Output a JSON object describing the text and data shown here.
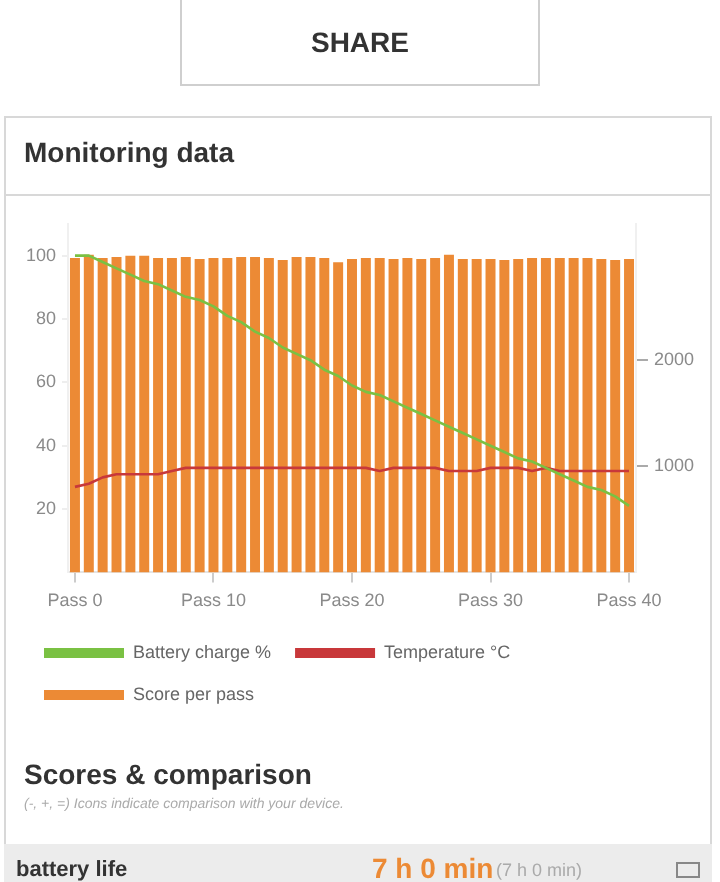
{
  "chart_data": {
    "type": "bar",
    "title": "Monitoring data",
    "categories": [
      "Pass 0",
      null,
      null,
      null,
      null,
      null,
      null,
      null,
      null,
      null,
      "Pass 10",
      null,
      null,
      null,
      null,
      null,
      null,
      null,
      null,
      null,
      "Pass 20",
      null,
      null,
      null,
      null,
      null,
      null,
      null,
      null,
      null,
      "Pass 30",
      null,
      null,
      null,
      null,
      null,
      null,
      null,
      null,
      null,
      "Pass 40"
    ],
    "ylim": [
      0,
      110
    ],
    "yticks": [
      20,
      40,
      60,
      80,
      100
    ],
    "y2lim": [
      0,
      3280
    ],
    "y2ticks": [
      1000,
      2000
    ],
    "series": [
      {
        "name": "Battery charge %",
        "type": "line",
        "color": "#7ac143",
        "values": [
          100,
          100,
          98,
          96,
          94,
          92,
          91,
          89,
          87,
          86,
          84,
          81,
          79,
          76,
          74,
          71,
          69,
          67,
          64,
          62,
          59,
          57,
          56,
          54,
          52,
          50,
          48,
          46,
          44,
          42,
          40,
          38,
          36,
          35,
          33,
          31,
          29,
          27,
          26,
          24,
          21
        ]
      },
      {
        "name": "Temperature °C",
        "type": "line",
        "color": "#c8383a",
        "values": [
          27,
          28,
          30,
          31,
          31,
          31,
          31,
          32,
          33,
          33,
          33,
          33,
          33,
          33,
          33,
          33,
          33,
          33,
          33,
          33,
          33,
          33,
          32,
          33,
          33,
          33,
          33,
          32,
          32,
          32,
          33,
          33,
          33,
          32,
          33,
          32,
          32,
          32,
          32,
          32,
          32
        ]
      },
      {
        "name": "Score per pass",
        "axis": "y2",
        "color": "#ec8a35",
        "values": [
          2960,
          2990,
          2960,
          2970,
          2980,
          2980,
          2960,
          2960,
          2970,
          2950,
          2960,
          2960,
          2970,
          2970,
          2960,
          2940,
          2970,
          2970,
          2960,
          2920,
          2950,
          2960,
          2960,
          2950,
          2960,
          2950,
          2960,
          2990,
          2950,
          2950,
          2950,
          2940,
          2950,
          2960,
          2960,
          2960,
          2960,
          2960,
          2950,
          2940,
          2950
        ]
      }
    ],
    "grid": false,
    "legend": "bottom",
    "marker": "none",
    "annotations": [
      "SHARE",
      "Scores & comparison",
      "(-, +, =) Icons indicate comparison with your device.",
      "battery life",
      "7 h 0 min",
      "(7 h 0 min)"
    ]
  }
}
